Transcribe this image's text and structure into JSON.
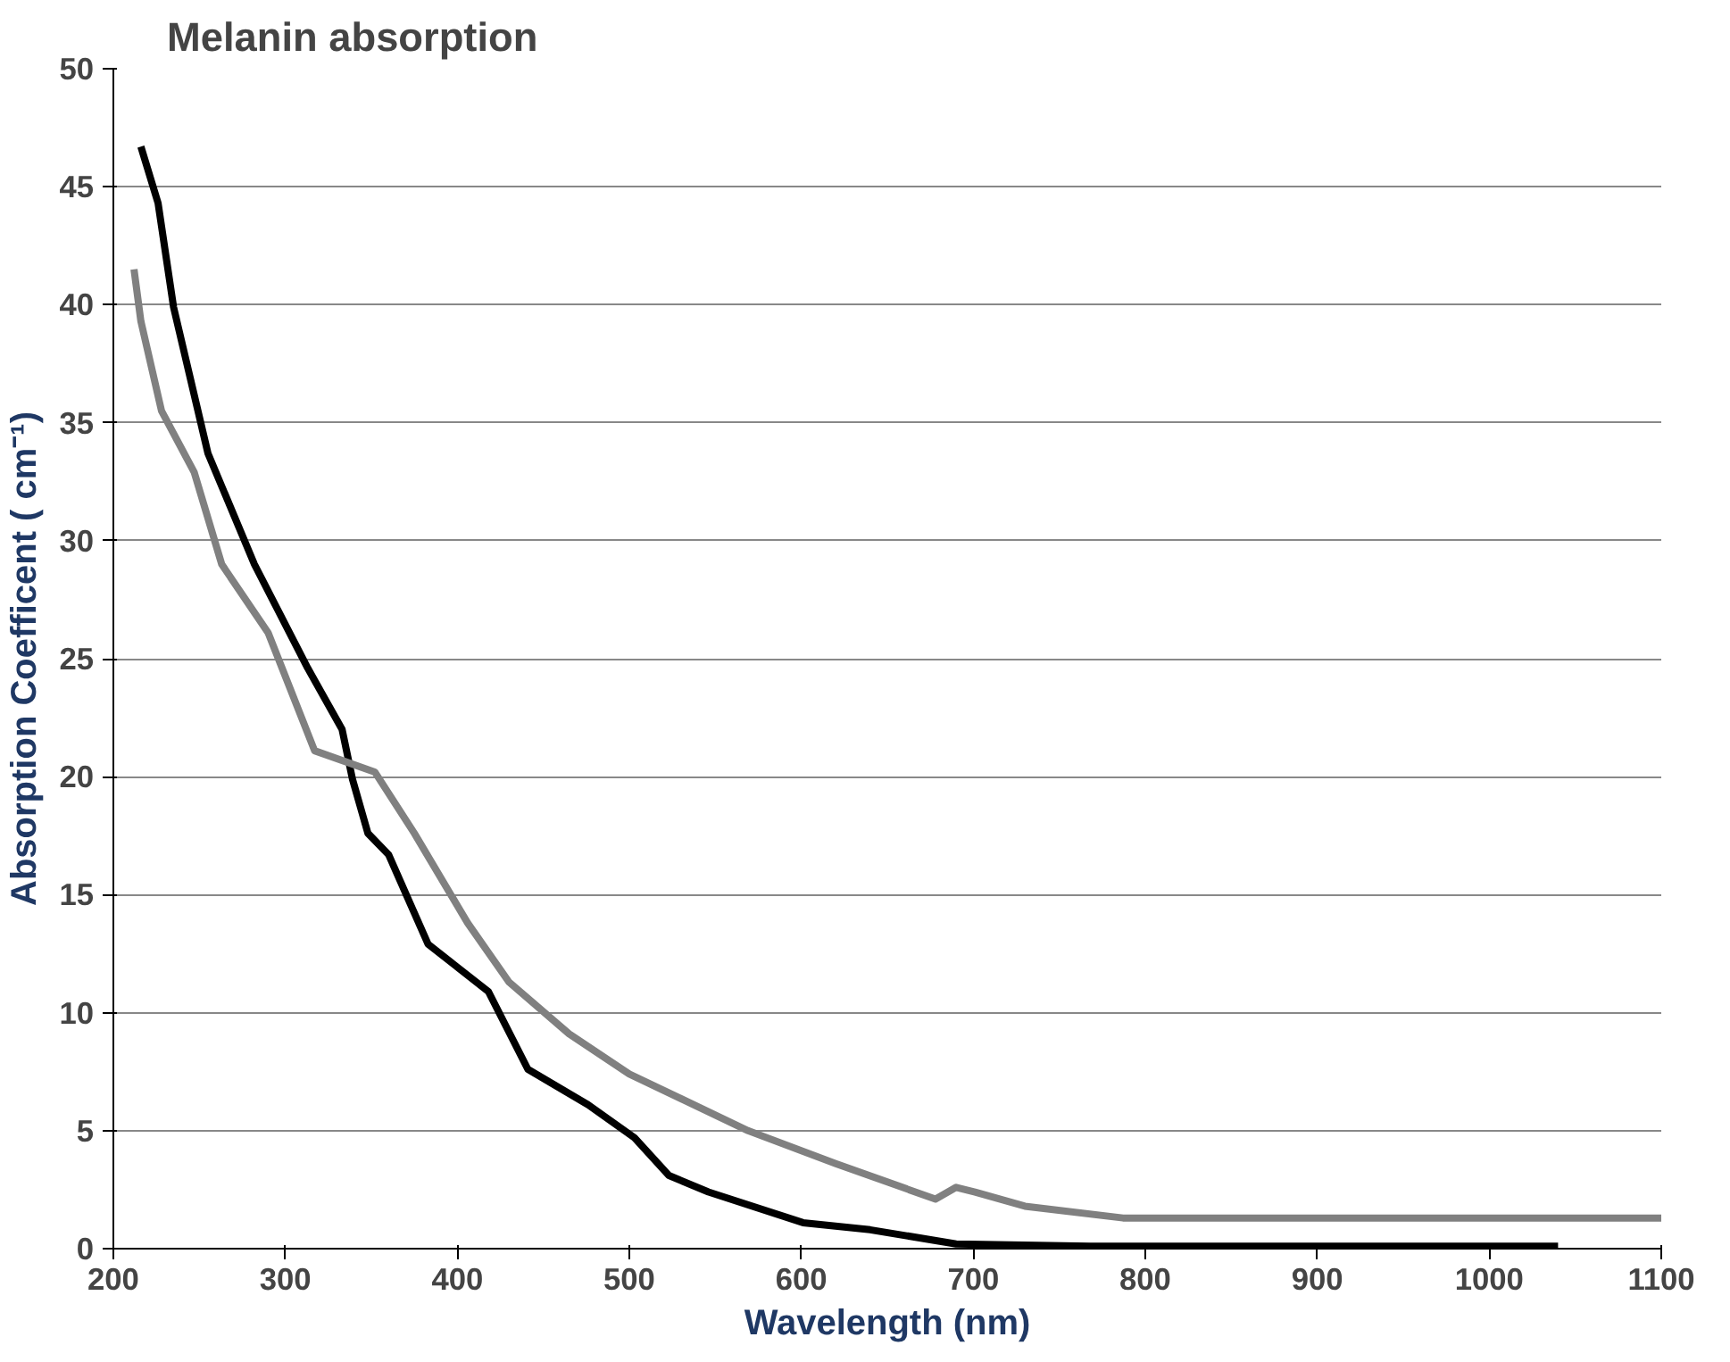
{
  "chart_data": {
    "type": "line",
    "title": "Melanin absorption",
    "xlabel": "Wavelength (nm)",
    "ylabel": "Absorption Coefficent ( cm⁻¹)",
    "xlim": [
      200,
      1100
    ],
    "xticks": [
      200,
      300,
      400,
      500,
      600,
      700,
      800,
      900,
      1000,
      1100
    ],
    "ylim": [
      0,
      50
    ],
    "yticks": [
      0,
      5,
      10,
      15,
      20,
      25,
      30,
      35,
      40,
      45,
      50
    ],
    "grid": "y",
    "line_style": "solid",
    "series": [
      {
        "color": "#000000",
        "x": [
          216,
          226,
          235,
          255,
          282,
          313,
          333,
          339,
          348,
          360,
          383,
          418,
          441,
          476,
          503,
          523,
          546,
          601,
          640,
          690,
          768,
          1040
        ],
        "values": [
          46.7,
          44.3,
          39.9,
          33.7,
          29.0,
          24.6,
          22.0,
          19.9,
          17.6,
          16.7,
          12.9,
          10.9,
          7.6,
          6.1,
          4.7,
          3.1,
          2.4,
          1.1,
          0.8,
          0.2,
          0.1,
          0.1
        ]
      },
      {
        "color": "#808080",
        "x": [
          212,
          216,
          228,
          247,
          263,
          290,
          317,
          352,
          375,
          406,
          430,
          465,
          500,
          569,
          620,
          678,
          690,
          701,
          730,
          787,
          1100
        ],
        "values": [
          41.5,
          39.3,
          35.5,
          32.9,
          29.0,
          26.1,
          21.1,
          20.2,
          17.6,
          13.8,
          11.3,
          9.1,
          7.4,
          5.0,
          3.6,
          2.1,
          2.6,
          2.4,
          1.8,
          1.3,
          1.3
        ]
      }
    ]
  }
}
